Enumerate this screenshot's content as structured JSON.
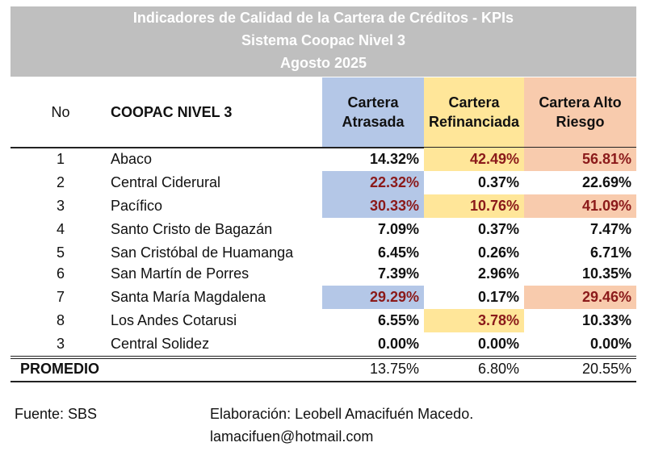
{
  "title": {
    "line1": "Indicadores de Calidad de la Cartera de Créditos - KPIs",
    "line2": "Sistema Coopac Nivel 3",
    "line3": "Agosto 2025"
  },
  "header": {
    "no": "No",
    "name": "COOPAC NIVEL 3",
    "col1_a": "Cartera",
    "col1_b": "Atrasada",
    "col2_a": "Cartera",
    "col2_b": "Refinanciada",
    "col3_a": "Cartera Alto",
    "col3_b": "Riesgo"
  },
  "header_colors": {
    "atrasada": "#b4c7e7",
    "refinanciada": "#ffe699",
    "alto_riesgo": "#f8cbad"
  },
  "rows": [
    {
      "no": "1",
      "name": "Abaco",
      "v1": "14.32%",
      "v2": "42.49%",
      "v3": "56.81%"
    },
    {
      "no": "2",
      "name": "Central Ciderural",
      "v1": "22.32%",
      "v2": "0.37%",
      "v3": "22.69%"
    },
    {
      "no": "3",
      "name": "Pacífico",
      "v1": "30.33%",
      "v2": "10.76%",
      "v3": "41.09%"
    },
    {
      "no": "4",
      "name": "Santo Cristo de Bagazán",
      "v1": "7.09%",
      "v2": "0.37%",
      "v3": "7.47%"
    },
    {
      "no": "5",
      "name": "San Cristóbal de Huamanga",
      "v1": "6.45%",
      "v2": "0.26%",
      "v3": "6.71%"
    },
    {
      "no": "6",
      "name": "San Martín de Porres",
      "v1": "7.39%",
      "v2": "2.96%",
      "v3": "10.35%"
    },
    {
      "no": "7",
      "name": "Santa María Magdalena",
      "v1": "29.29%",
      "v2": "0.17%",
      "v3": "29.46%"
    },
    {
      "no": "8",
      "name": "Los Andes Cotarusi",
      "v1": "6.55%",
      "v2": "3.78%",
      "v3": "10.33%"
    },
    {
      "no": "3",
      "name": "Central Solidez",
      "v1": "0.00%",
      "v2": "0.00%",
      "v3": "0.00%"
    }
  ],
  "average": {
    "label": "PROMEDIO",
    "v1": "13.75%",
    "v2": "6.80%",
    "v3": "20.55%"
  },
  "footer": {
    "source": "Fuente: SBS",
    "author": "Elaboración: Leobell Amacifuén Macedo.",
    "email": "lamacifuen@hotmail.com"
  }
}
